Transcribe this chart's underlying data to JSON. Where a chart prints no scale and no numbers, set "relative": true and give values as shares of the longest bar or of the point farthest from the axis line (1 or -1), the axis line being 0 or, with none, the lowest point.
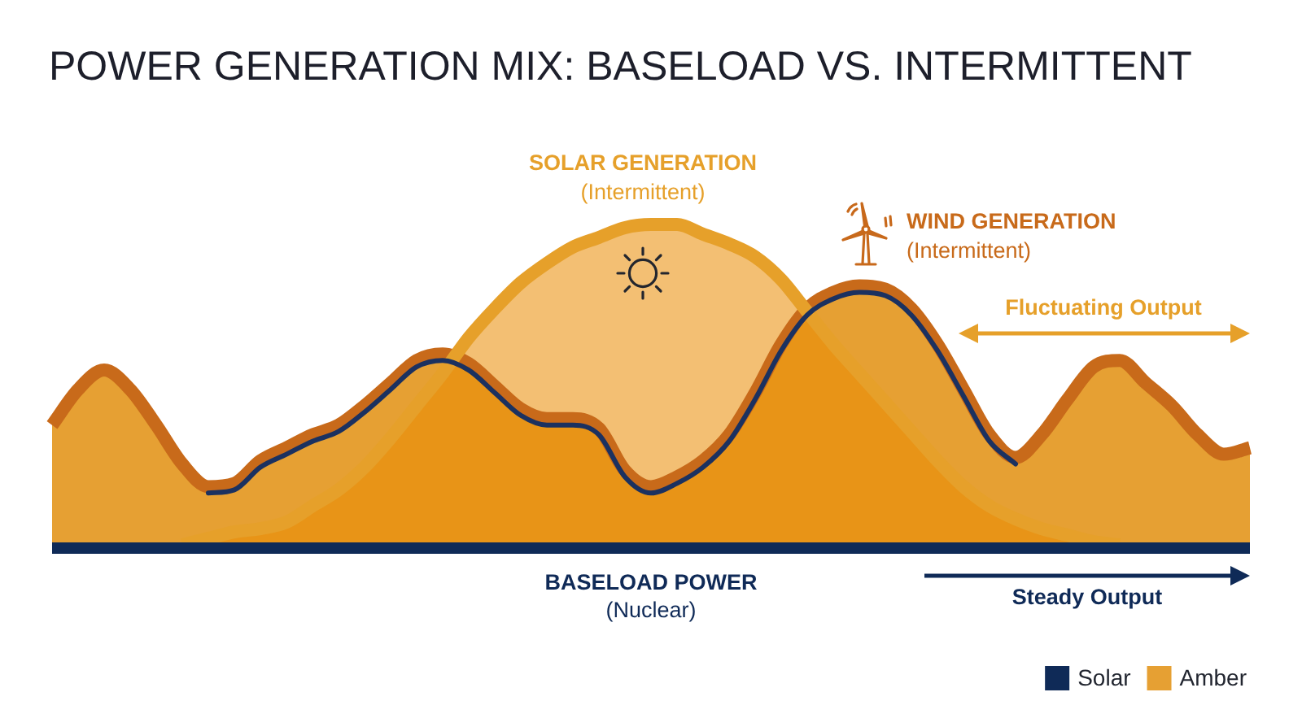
{
  "chart_data": {
    "type": "area",
    "title": "POWER GENERATION MIX: BASELOAD VS. INTERMITTENT",
    "relative": true,
    "legend": "bottom right",
    "categories": [
      null,
      null,
      null,
      null,
      null,
      null,
      null,
      null,
      null,
      null,
      null,
      null,
      null,
      null,
      null,
      null,
      null,
      null,
      null,
      null,
      null,
      null,
      null,
      null,
      null,
      null,
      null,
      null,
      null,
      null,
      null,
      null,
      null,
      null,
      null,
      null,
      null,
      null,
      null,
      null,
      null,
      null,
      null,
      null,
      null,
      null,
      null
    ],
    "series": [
      {
        "name": "Solar",
        "type": "line",
        "color": "#0f2a57",
        "values": [
          0,
          0,
          0,
          0,
          0,
          0,
          0,
          0,
          0,
          0,
          0,
          0,
          0,
          0,
          0,
          0,
          0,
          0,
          0,
          0,
          0,
          0,
          0,
          0,
          0,
          0,
          0,
          0,
          0,
          0,
          0,
          0,
          0,
          0,
          0,
          0,
          0,
          0,
          0,
          0,
          0,
          0,
          0,
          0,
          0,
          0,
          0
        ]
      },
      {
        "type": "line",
        "color": "#1b3160",
        "values": [
          null,
          null,
          null,
          null,
          null,
          null,
          0.17,
          0.18,
          0.25,
          0.29,
          0.33,
          0.36,
          0.42,
          0.49,
          0.56,
          0.58,
          0.55,
          0.48,
          0.41,
          0.38,
          0.38,
          0.35,
          0.22,
          0.17,
          0.2,
          0.25,
          0.33,
          0.46,
          0.61,
          0.72,
          0.77,
          0.79,
          0.78,
          0.72,
          0.61,
          0.47,
          0.33,
          0.26,
          null,
          null,
          null,
          null,
          null,
          null,
          null,
          null,
          null
        ]
      },
      {
        "color": "#e6a02a",
        "values": [
          null,
          null,
          null,
          null,
          null,
          0.01,
          0.03,
          0.05,
          0.06,
          0.08,
          0.13,
          0.18,
          0.25,
          0.34,
          0.44,
          0.54,
          0.65,
          0.74,
          0.82,
          0.88,
          0.93,
          0.96,
          0.99,
          1,
          1,
          0.97,
          0.94,
          0.9,
          0.83,
          0.73,
          0.63,
          0.54,
          0.45,
          0.36,
          0.27,
          0.19,
          0.13,
          0.09,
          0.06,
          0.04,
          0.02,
          0.01,
          null,
          null,
          null,
          null,
          null
        ]
      },
      {
        "name": "Amber",
        "color": "#e6a033",
        "values": [
          0.38,
          0.49,
          0.55,
          0.49,
          0.38,
          0.26,
          0.19,
          0.2,
          0.27,
          0.31,
          0.35,
          0.38,
          0.44,
          0.51,
          0.58,
          0.6,
          0.57,
          0.5,
          0.43,
          0.4,
          0.4,
          0.37,
          0.24,
          0.19,
          0.22,
          0.27,
          0.35,
          0.48,
          0.63,
          0.74,
          0.79,
          0.81,
          0.8,
          0.74,
          0.63,
          0.49,
          0.35,
          0.28,
          0.35,
          0.46,
          0.56,
          0.58,
          0.51,
          0.44,
          0.35,
          0.29,
          0.31
        ]
      }
    ],
    "annotations": [
      "SOLAR GENERATION",
      "(Intermittent)",
      "WIND GENERATION",
      "(Intermittent)",
      "Fluctuating Output",
      "BASELOAD POWER",
      "(Nuclear)",
      "Steady Output"
    ]
  }
}
